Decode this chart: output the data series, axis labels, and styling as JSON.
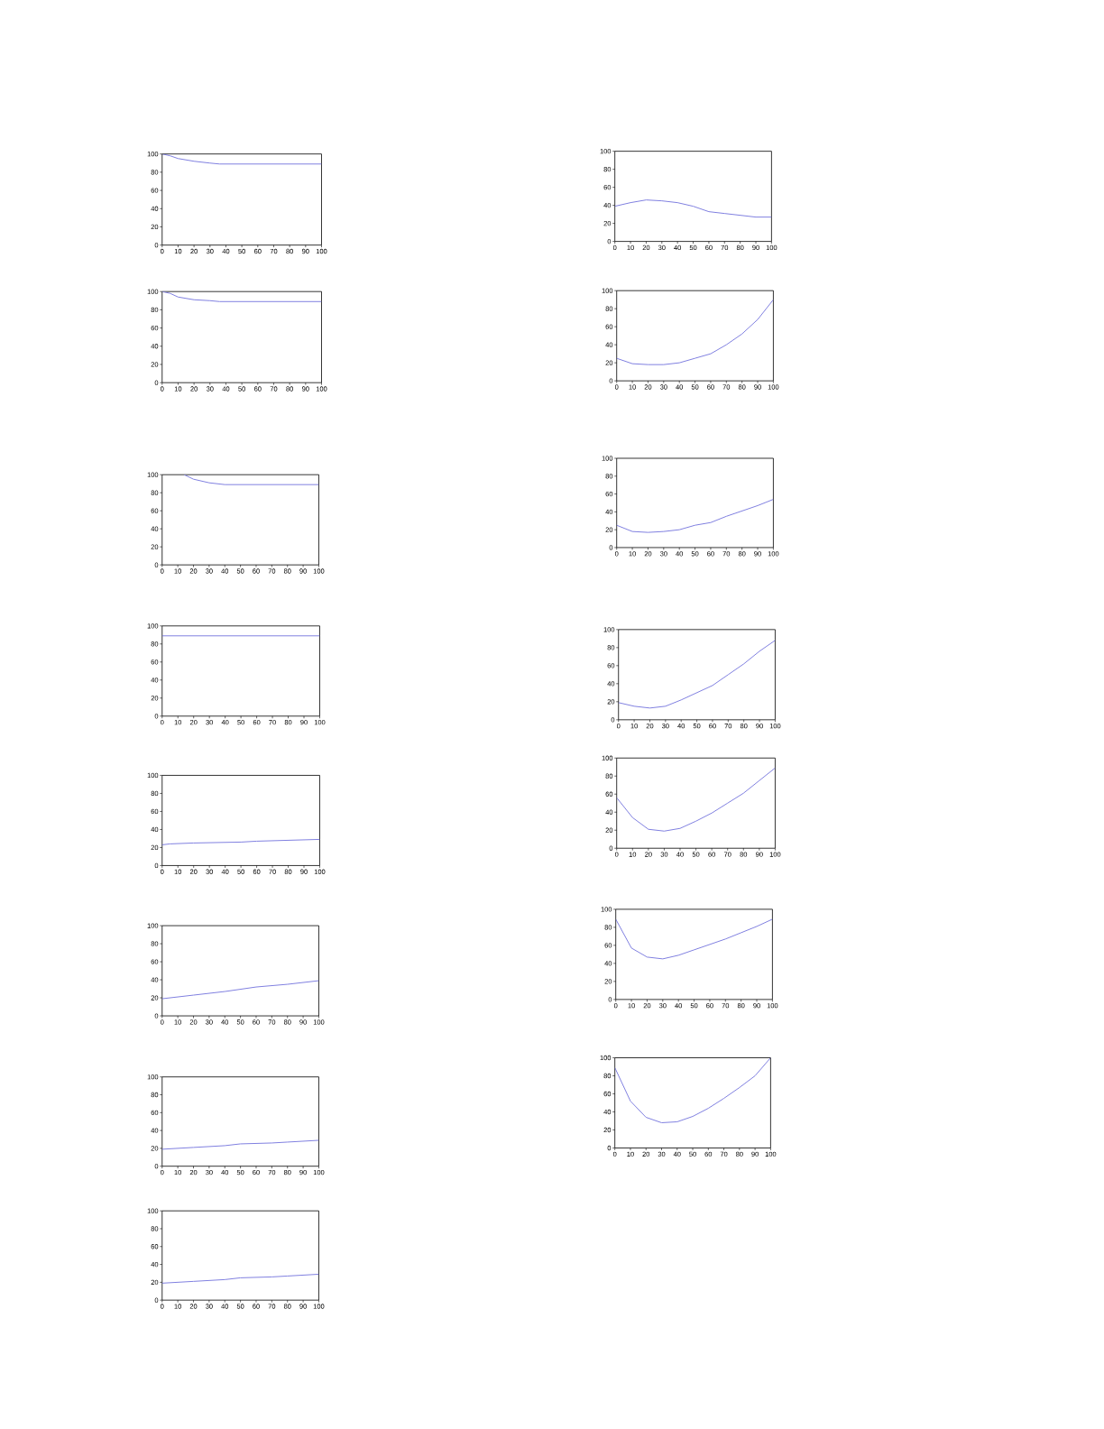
{
  "chart_data": [
    {
      "type": "line",
      "x": [
        0,
        5,
        10,
        20,
        30,
        36,
        40,
        100
      ],
      "values": [
        100,
        98,
        95,
        92,
        90,
        89,
        89,
        89
      ],
      "color": "#8080e0",
      "xlim": [
        0,
        100
      ],
      "ylim": [
        0,
        100
      ],
      "xticks": [
        0,
        10,
        20,
        30,
        40,
        50,
        60,
        70,
        80,
        90,
        100
      ],
      "yticks": [
        0,
        20,
        40,
        60,
        80,
        100
      ]
    },
    {
      "type": "line",
      "x": [
        0,
        10,
        20,
        30,
        40,
        50,
        60,
        70,
        80,
        90,
        100
      ],
      "values": [
        39,
        43,
        46,
        45,
        43,
        39,
        33,
        31,
        29,
        27,
        27
      ],
      "color": "#8080e0",
      "xlim": [
        0,
        100
      ],
      "ylim": [
        0,
        100
      ],
      "xticks": [
        0,
        10,
        20,
        30,
        40,
        50,
        60,
        70,
        80,
        90,
        100
      ],
      "yticks": [
        0,
        20,
        40,
        60,
        80,
        100
      ]
    },
    {
      "type": "line",
      "x": [
        0,
        5,
        10,
        20,
        30,
        36,
        40,
        100
      ],
      "values": [
        100,
        98,
        94,
        91,
        90,
        89,
        89,
        89
      ],
      "color": "#8080e0",
      "xlim": [
        0,
        100
      ],
      "ylim": [
        0,
        100
      ],
      "xticks": [
        0,
        10,
        20,
        30,
        40,
        50,
        60,
        70,
        80,
        90,
        100
      ],
      "yticks": [
        0,
        20,
        40,
        60,
        80,
        100
      ]
    },
    {
      "type": "line",
      "x": [
        0,
        10,
        20,
        30,
        40,
        50,
        60,
        70,
        80,
        90,
        100
      ],
      "values": [
        25,
        19,
        18,
        18,
        20,
        25,
        30,
        40,
        52,
        68,
        90
      ],
      "color": "#8080e0",
      "xlim": [
        0,
        100
      ],
      "ylim": [
        0,
        100
      ],
      "xticks": [
        0,
        10,
        20,
        30,
        40,
        50,
        60,
        70,
        80,
        90,
        100
      ],
      "yticks": [
        0,
        20,
        40,
        60,
        80,
        100
      ]
    },
    {
      "type": "line",
      "x": [
        14,
        20,
        30,
        40,
        100
      ],
      "values": [
        100,
        95,
        91,
        89,
        89
      ],
      "color": "#8080e0",
      "xlim": [
        0,
        100
      ],
      "ylim": [
        0,
        100
      ],
      "xticks": [
        0,
        10,
        20,
        30,
        40,
        50,
        60,
        70,
        80,
        90,
        100
      ],
      "yticks": [
        0,
        20,
        40,
        60,
        80,
        100
      ]
    },
    {
      "type": "line",
      "x": [
        0,
        10,
        20,
        30,
        40,
        50,
        60,
        70,
        80,
        90,
        100
      ],
      "values": [
        25,
        18,
        17,
        18,
        20,
        25,
        28,
        35,
        41,
        47,
        54
      ],
      "color": "#8080e0",
      "xlim": [
        0,
        100
      ],
      "ylim": [
        0,
        100
      ],
      "xticks": [
        0,
        10,
        20,
        30,
        40,
        50,
        60,
        70,
        80,
        90,
        100
      ],
      "yticks": [
        0,
        20,
        40,
        60,
        80,
        100
      ]
    },
    {
      "type": "line",
      "x": [
        0,
        100
      ],
      "values": [
        89,
        89
      ],
      "color": "#8080e0",
      "xlim": [
        0,
        100
      ],
      "ylim": [
        0,
        100
      ],
      "xticks": [
        0,
        10,
        20,
        30,
        40,
        50,
        60,
        70,
        80,
        90,
        100
      ],
      "yticks": [
        0,
        20,
        40,
        60,
        80,
        100
      ]
    },
    {
      "type": "line",
      "x": [
        0,
        10,
        20,
        30,
        40,
        50,
        60,
        70,
        80,
        90,
        100
      ],
      "values": [
        19,
        15,
        13,
        15,
        22,
        30,
        38,
        50,
        62,
        76,
        88
      ],
      "color": "#8080e0",
      "xlim": [
        0,
        100
      ],
      "ylim": [
        0,
        100
      ],
      "xticks": [
        0,
        10,
        20,
        30,
        40,
        50,
        60,
        70,
        80,
        90,
        100
      ],
      "yticks": [
        0,
        20,
        40,
        60,
        80,
        100
      ]
    },
    {
      "type": "line",
      "x": [
        0,
        5,
        20,
        50,
        60,
        80,
        100
      ],
      "values": [
        23,
        24,
        25,
        26,
        27,
        28,
        29
      ],
      "color": "#8080e0",
      "xlim": [
        0,
        100
      ],
      "ylim": [
        0,
        100
      ],
      "xticks": [
        0,
        10,
        20,
        30,
        40,
        50,
        60,
        70,
        80,
        90,
        100
      ],
      "yticks": [
        0,
        20,
        40,
        60,
        80,
        100
      ]
    },
    {
      "type": "line",
      "x": [
        0,
        10,
        20,
        30,
        40,
        50,
        60,
        70,
        80,
        90,
        100
      ],
      "values": [
        56,
        34,
        21,
        19,
        22,
        30,
        39,
        50,
        61,
        75,
        89
      ],
      "color": "#8080e0",
      "xlim": [
        0,
        100
      ],
      "ylim": [
        0,
        100
      ],
      "xticks": [
        0,
        10,
        20,
        30,
        40,
        50,
        60,
        70,
        80,
        90,
        100
      ],
      "yticks": [
        0,
        20,
        40,
        60,
        80,
        100
      ]
    },
    {
      "type": "line",
      "x": [
        0,
        20,
        40,
        60,
        80,
        100
      ],
      "values": [
        19,
        23,
        27,
        32,
        35,
        39
      ],
      "color": "#8080e0",
      "xlim": [
        0,
        100
      ],
      "ylim": [
        0,
        100
      ],
      "xticks": [
        0,
        10,
        20,
        30,
        40,
        50,
        60,
        70,
        80,
        90,
        100
      ],
      "yticks": [
        0,
        20,
        40,
        60,
        80,
        100
      ]
    },
    {
      "type": "line",
      "x": [
        0,
        10,
        20,
        30,
        40,
        50,
        60,
        70,
        80,
        90,
        100
      ],
      "values": [
        89,
        57,
        47,
        45,
        49,
        55,
        61,
        67,
        74,
        81,
        89
      ],
      "color": "#8080e0",
      "xlim": [
        0,
        100
      ],
      "ylim": [
        0,
        100
      ],
      "xticks": [
        0,
        10,
        20,
        30,
        40,
        50,
        60,
        70,
        80,
        90,
        100
      ],
      "yticks": [
        0,
        20,
        40,
        60,
        80,
        100
      ]
    },
    {
      "type": "line",
      "x": [
        0,
        20,
        40,
        50,
        70,
        80,
        100
      ],
      "values": [
        19,
        21,
        23,
        25,
        26,
        27,
        29
      ],
      "color": "#8080e0",
      "xlim": [
        0,
        100
      ],
      "ylim": [
        0,
        100
      ],
      "xticks": [
        0,
        10,
        20,
        30,
        40,
        50,
        60,
        70,
        80,
        90,
        100
      ],
      "yticks": [
        0,
        20,
        40,
        60,
        80,
        100
      ]
    },
    {
      "type": "line",
      "x": [
        0,
        10,
        20,
        30,
        40,
        50,
        60,
        70,
        80,
        90,
        100
      ],
      "values": [
        89,
        52,
        34,
        28,
        29,
        35,
        44,
        55,
        67,
        80,
        100
      ],
      "color": "#8080e0",
      "xlim": [
        0,
        100
      ],
      "ylim": [
        0,
        100
      ],
      "xticks": [
        0,
        10,
        20,
        30,
        40,
        50,
        60,
        70,
        80,
        90,
        100
      ],
      "yticks": [
        0,
        20,
        40,
        60,
        80,
        100
      ]
    },
    {
      "type": "line",
      "x": [
        0,
        20,
        40,
        50,
        70,
        80,
        100
      ],
      "values": [
        19,
        21,
        23,
        25,
        26,
        27,
        29
      ],
      "color": "#8080e0",
      "xlim": [
        0,
        100
      ],
      "ylim": [
        0,
        100
      ],
      "xticks": [
        0,
        10,
        20,
        30,
        40,
        50,
        60,
        70,
        80,
        90,
        100
      ],
      "yticks": [
        0,
        20,
        40,
        60,
        80,
        100
      ]
    }
  ]
}
